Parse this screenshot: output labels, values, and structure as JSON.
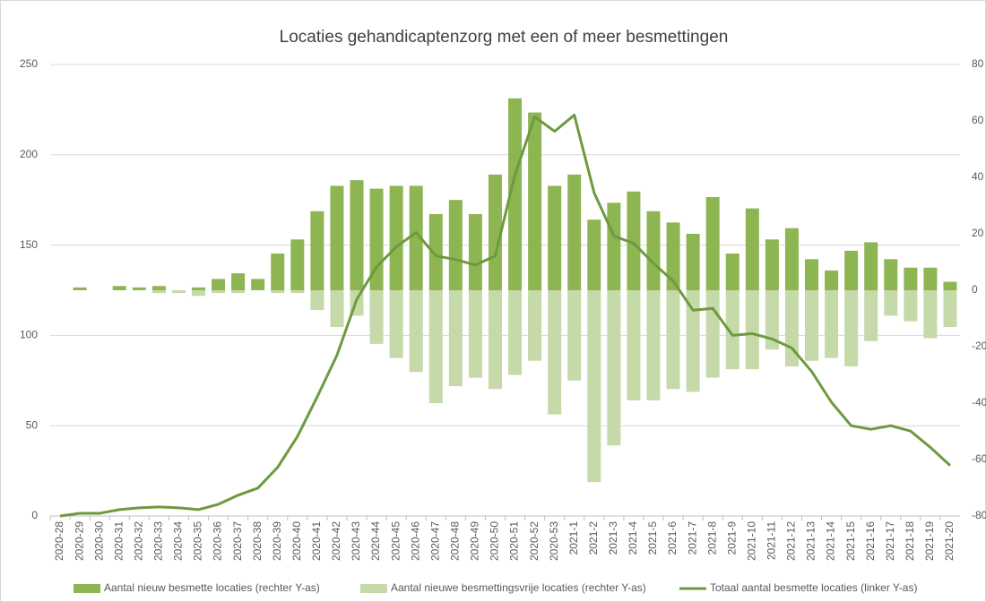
{
  "chart_data": {
    "type": "bar-line",
    "title": "Locaties gehandicaptenzorg met een of meer besmettingen",
    "categories": [
      "2020-28",
      "2020-29",
      "2020-30",
      "2020-31",
      "2020-32",
      "2020-33",
      "2020-34",
      "2020-35",
      "2020-36",
      "2020-37",
      "2020-38",
      "2020-39",
      "2020-40",
      "2020-41",
      "2020-42",
      "2020-43",
      "2020-44",
      "2020-45",
      "2020-46",
      "2020-47",
      "2020-48",
      "2020-49",
      "2020-50",
      "2020-51",
      "2020-52",
      "2020-53",
      "2021-1",
      "2021-2",
      "2021-3",
      "2021-4",
      "2021-5",
      "2021-6",
      "2021-7",
      "2021-8",
      "2021-9",
      "2021-10",
      "2021-11",
      "2021-12",
      "2021-13",
      "2021-14",
      "2021-15",
      "2021-16",
      "2021-17",
      "2021-18",
      "2021-19",
      "2021-20"
    ],
    "series": [
      {
        "name": "Aantal nieuw besmette locaties (rechter Y-as)",
        "color": "#8db552",
        "kind": "bar",
        "axis": "y2",
        "values": [
          0,
          1,
          0,
          1.5,
          1,
          1.5,
          0,
          1,
          4,
          6,
          4,
          13,
          18,
          28,
          37,
          39,
          36,
          37,
          37,
          27,
          32,
          27,
          41,
          68,
          63,
          37,
          41,
          25,
          31,
          35,
          28,
          24,
          20,
          33,
          13,
          29,
          18,
          22,
          11,
          7,
          14,
          17,
          11,
          8,
          8,
          3
        ]
      },
      {
        "name": "Aantal nieuwe besmettingsvrije locaties (rechter Y-as)",
        "color": "#c5d9a9",
        "kind": "bar",
        "axis": "y2",
        "values": [
          0,
          0,
          0,
          0,
          0,
          -1,
          -1,
          -2,
          -1,
          -1,
          0,
          -1,
          -1,
          -7,
          -13,
          -9,
          -19,
          -24,
          -29,
          -40,
          -34,
          -31,
          -35,
          -30,
          -25,
          -44,
          -32,
          -68,
          -55,
          -39,
          -39,
          -35,
          -36,
          -31,
          -28,
          -28,
          -21,
          -27,
          -25,
          -24,
          -27,
          -18,
          -9,
          -11,
          -17,
          -13
        ]
      },
      {
        "name": "Totaal aantal besmette locaties (linker Y-as)",
        "color": "#6e9a3f",
        "kind": "line",
        "axis": "y",
        "values": [
          0,
          1.5,
          1.5,
          3.5,
          4.5,
          5,
          4.5,
          3.5,
          6.5,
          11.5,
          15.5,
          27,
          44,
          66,
          89,
          120,
          138,
          149,
          157,
          144,
          142,
          139,
          144,
          189,
          221,
          213,
          222,
          179,
          155,
          151,
          140,
          130,
          114,
          115,
          100,
          101,
          98,
          93,
          80,
          63,
          50,
          48,
          50,
          47,
          38,
          28
        ]
      }
    ],
    "ylim": [
      0,
      250
    ],
    "yticks": [
      0,
      50,
      100,
      150,
      200,
      250
    ],
    "y2lim": [
      -80,
      80
    ],
    "y2ticks": [
      -80,
      -60,
      -40,
      -20,
      0,
      20,
      40,
      60,
      80
    ],
    "grid": true,
    "legend": "bottom"
  }
}
